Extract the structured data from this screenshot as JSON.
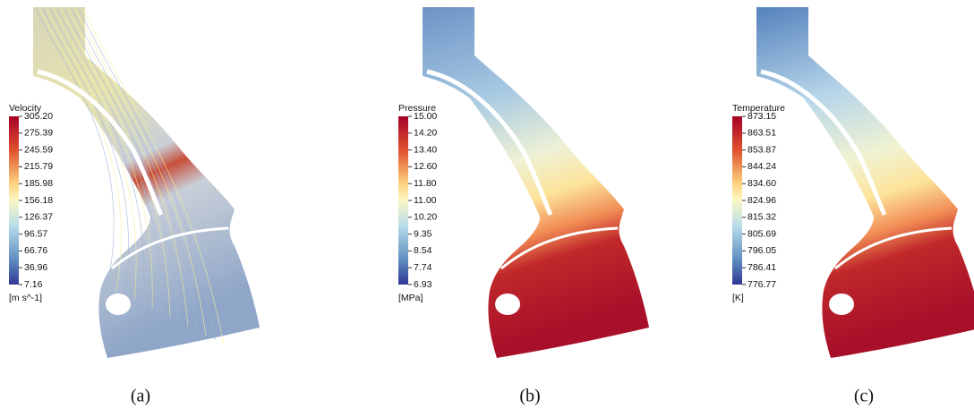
{
  "panels": [
    {
      "label": "(a)",
      "colorbar": {
        "title": "Velocity",
        "unit": "[m s^-1]",
        "ticks": [
          "305.20",
          "275.39",
          "245.59",
          "215.79",
          "185.98",
          "156.18",
          "126.37",
          "96.57",
          "66.76",
          "36.96",
          "7.16"
        ]
      }
    },
    {
      "label": "(b)",
      "colorbar": {
        "title": "Pressure",
        "unit": "[MPa]",
        "ticks": [
          "15.00",
          "14.20",
          "13.40",
          "12.60",
          "11.80",
          "11.00",
          "10.20",
          "9.35",
          "8.54",
          "7.74",
          "6.93"
        ]
      }
    },
    {
      "label": "(c)",
      "colorbar": {
        "title": "Temperature",
        "unit": "[K]",
        "ticks": [
          "873.15",
          "863.51",
          "853.87",
          "844.24",
          "834.60",
          "824.96",
          "815.32",
          "805.69",
          "796.05",
          "786.41",
          "776.77"
        ]
      }
    }
  ]
}
